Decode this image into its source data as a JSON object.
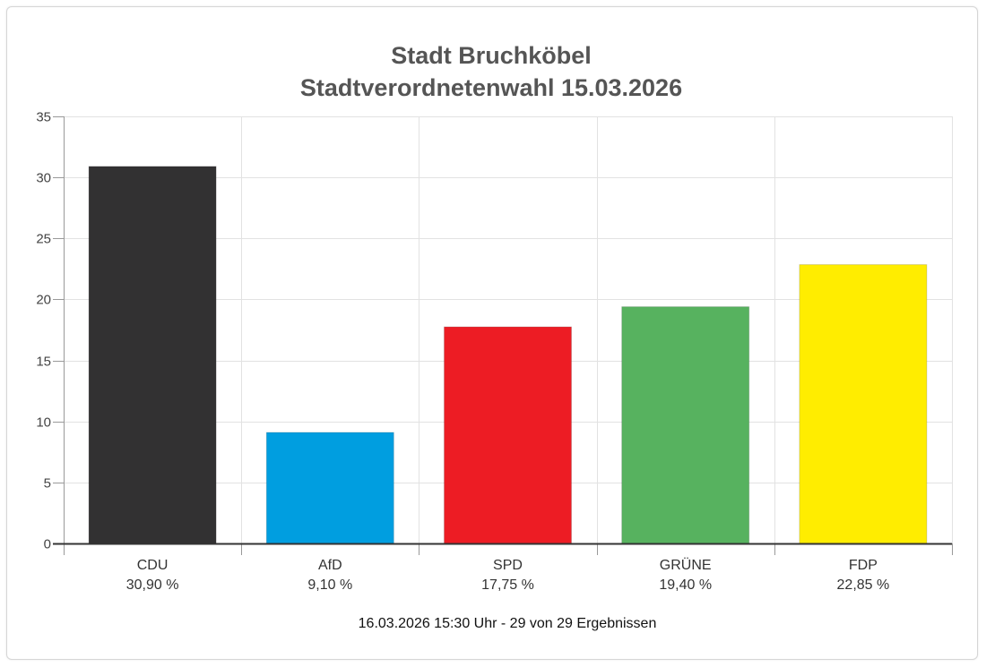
{
  "chart_data": {
    "type": "bar",
    "title": "Stadt Bruchköbel",
    "subtitle": "Stadtverordnetenwahl 15.03.2026",
    "categories": [
      "CDU",
      "AfD",
      "SPD",
      "GRÜNE",
      "FDP"
    ],
    "values": [
      30.9,
      9.1,
      17.75,
      19.4,
      22.85
    ],
    "value_labels": [
      "30,90 %",
      "9,10 %",
      "17,75 %",
      "19,40 %",
      "22,85 %"
    ],
    "colors": [
      "#323132",
      "#009ee0",
      "#ed1c24",
      "#57b25f",
      "#ffed00"
    ],
    "ylim": [
      0,
      35
    ],
    "yticks": [
      "0",
      "5",
      "10",
      "15",
      "20",
      "25",
      "30",
      "35"
    ],
    "ytick_values": [
      0,
      5,
      10,
      15,
      20,
      25,
      30,
      35
    ],
    "grid": true,
    "xlabel": "",
    "ylabel": ""
  },
  "footer": "16.03.2026 15:30 Uhr - 29 von 29 Ergebnissen",
  "colors": {
    "grid": "#e2e2e2",
    "axis": "#333333",
    "text": "#555555"
  }
}
